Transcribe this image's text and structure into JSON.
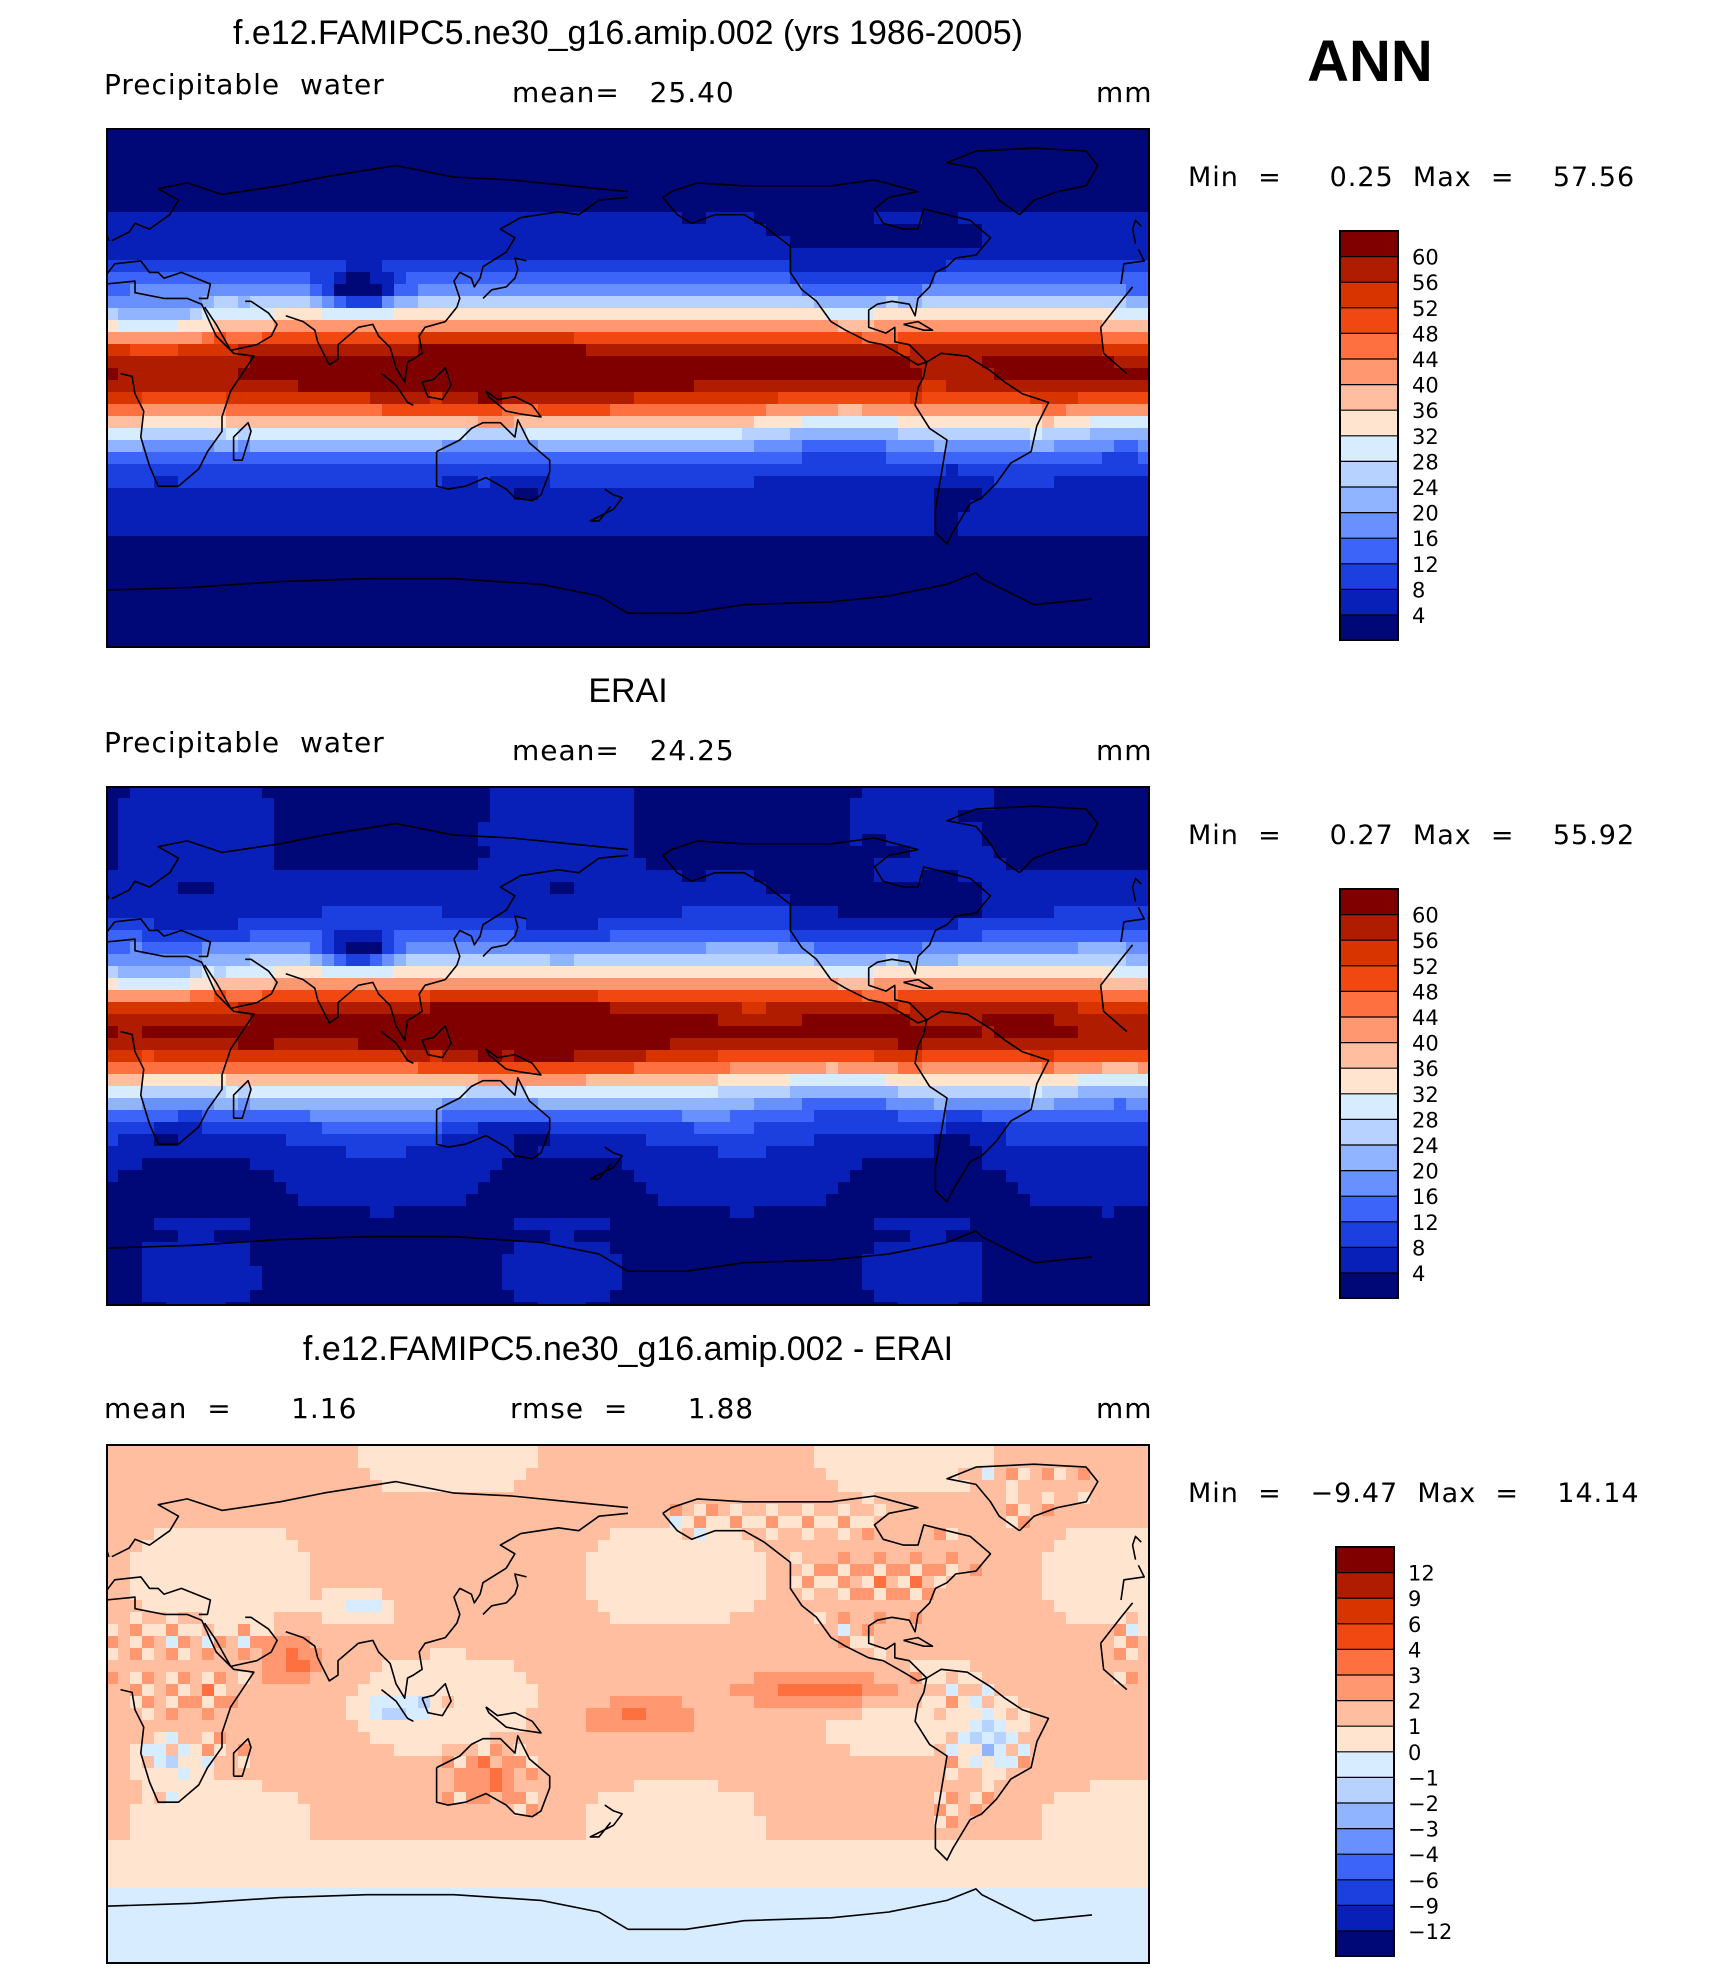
{
  "season": "ANN",
  "panels": [
    {
      "title": "f.e12.FAMIPC5.ne30_g16.amip.002 (yrs 1986-2005)",
      "left_label": "Precipitable  water",
      "mid_label": "mean=   25.40",
      "units": "mm",
      "minmax": "Min  =     0.25  Max  =    57.56",
      "kind": "abs",
      "colorbar_labels": [
        "60",
        "56",
        "52",
        "48",
        "44",
        "40",
        "36",
        "32",
        "28",
        "24",
        "20",
        "16",
        "12",
        "8",
        "4"
      ],
      "colors": [
        "#800000",
        "#b01c00",
        "#d83400",
        "#f04810",
        "#ff7040",
        "#ff9870",
        "#ffbea0",
        "#ffe4d0",
        "#d8ecff",
        "#b8d2ff",
        "#90b4ff",
        "#6890ff",
        "#3c64f8",
        "#1c40e0",
        "#0820b8",
        "#000878"
      ]
    },
    {
      "title": "ERAI",
      "left_label": "Precipitable  water",
      "mid_label": "mean=   24.25",
      "units": "mm",
      "minmax": "Min  =     0.27  Max  =    55.92",
      "kind": "abs",
      "colorbar_labels": [
        "60",
        "56",
        "52",
        "48",
        "44",
        "40",
        "36",
        "32",
        "28",
        "24",
        "20",
        "16",
        "12",
        "8",
        "4"
      ],
      "colors": [
        "#800000",
        "#b01c00",
        "#d83400",
        "#f04810",
        "#ff7040",
        "#ff9870",
        "#ffbea0",
        "#ffe4d0",
        "#d8ecff",
        "#b8d2ff",
        "#90b4ff",
        "#6890ff",
        "#3c64f8",
        "#1c40e0",
        "#0820b8",
        "#000878"
      ]
    },
    {
      "title": "f.e12.FAMIPC5.ne30_g16.amip.002 - ERAI",
      "left_label": "mean  =      1.16",
      "mid_label": "rmse  =      1.88",
      "units": "mm",
      "minmax": "Min  =   −9.47  Max  =    14.14",
      "kind": "diff",
      "colorbar_labels": [
        "12",
        "9",
        "6",
        "4",
        "3",
        "2",
        "1",
        "0",
        "−1",
        "−2",
        "−3",
        "−4",
        "−6",
        "−9",
        "−12"
      ],
      "colors": [
        "#800000",
        "#b01c00",
        "#d83400",
        "#f04810",
        "#ff7040",
        "#ff9870",
        "#ffbea0",
        "#ffe4d0",
        "#d8ecff",
        "#b8d2ff",
        "#90b4ff",
        "#6890ff",
        "#3c64f8",
        "#1c40e0",
        "#0820b8",
        "#000878"
      ]
    }
  ]
}
